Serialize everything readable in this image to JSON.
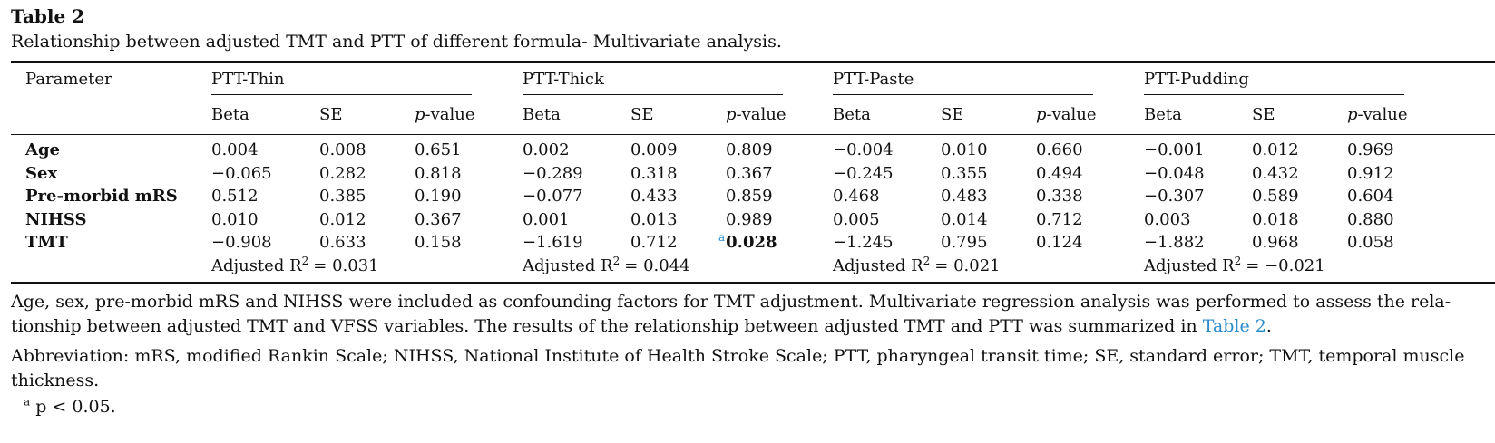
{
  "table": {
    "title": "Table 2",
    "caption": "Relationship between adjusted TMT and PTT of different formula- Multivariate analysis.",
    "header": {
      "parameter": "Parameter",
      "groups": [
        "PTT-Thin",
        "PTT-Thick",
        "PTT-Paste",
        "PTT-Pudding"
      ],
      "sub": [
        "Beta",
        "SE",
        "p",
        "-value"
      ]
    },
    "rows": [
      {
        "label": "Age",
        "values": [
          "0.004",
          "0.008",
          "0.651",
          "0.002",
          "0.009",
          "0.809",
          "−0.004",
          "0.010",
          "0.660",
          "−0.001",
          "0.012",
          "0.969"
        ]
      },
      {
        "label": "Sex",
        "values": [
          "−0.065",
          "0.282",
          "0.818",
          "−0.289",
          "0.318",
          "0.367",
          "−0.245",
          "0.355",
          "0.494",
          "−0.048",
          "0.432",
          "0.912"
        ]
      },
      {
        "label": "Pre-morbid mRS",
        "values": [
          "0.512",
          "0.385",
          "0.190",
          "−0.077",
          "0.433",
          "0.859",
          "0.468",
          "0.483",
          "0.338",
          "−0.307",
          "0.589",
          "0.604"
        ]
      },
      {
        "label": "NIHSS",
        "values": [
          "0.010",
          "0.012",
          "0.367",
          "0.001",
          "0.013",
          "0.989",
          "0.005",
          "0.014",
          "0.712",
          "0.003",
          "0.018",
          "0.880"
        ]
      },
      {
        "label": "TMT",
        "values": [
          "−0.908",
          "0.633",
          "0.158",
          "−1.619",
          "0.712",
          "0.028",
          "−1.245",
          "0.795",
          "0.124",
          "−1.882",
          "0.968",
          "0.058"
        ],
        "flag": {
          "index": 5,
          "mark": "a"
        }
      }
    ],
    "adjusted_r2": {
      "prefix": "Adjusted R",
      "power": "2",
      "values": [
        "= 0.031",
        "= 0.044",
        "= 0.021",
        "= −0.021"
      ]
    }
  },
  "notes": {
    "confounders": "Age, sex, pre-morbid mRS and NIHSS were included as confounding factors for TMT adjustment. Multivariate regression analysis was performed to assess the rela-",
    "relationship": "tionship between adjusted TMT and VFSS variables. The results of the relationship between adjusted TMT and PTT was summarized in",
    "table_link": "Table 2",
    "period": ".",
    "abbreviation": "Abbreviation: mRS, modified Rankin Scale; NIHSS, National Institute of Health Stroke Scale; PTT, pharyngeal transit time; SE, standard error; TMT, temporal muscle",
    "abbreviation_cont": "thickness.",
    "footnote_mark": "a",
    "footnote_text": "p < 0.05."
  }
}
